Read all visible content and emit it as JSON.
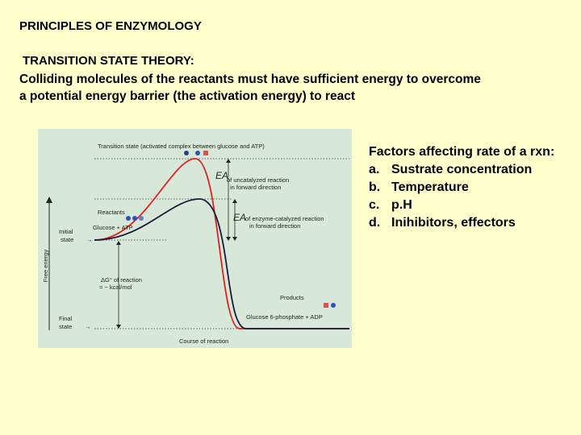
{
  "title": "PRINCIPLES OF ENZYMOLOGY",
  "subtitle": "TRANSITION STATE THEORY:",
  "description_line1": "Colliding molecules of the reactants must have sufficient energy to overcome",
  "description_line2": "a potential energy barrier (the activation energy) to react",
  "factors": {
    "heading": "Factors affecting rate of a rxn:",
    "items": [
      {
        "letter": "a.",
        "text": "Sustrate concentration"
      },
      {
        "letter": "b.",
        "text": "Temperature"
      },
      {
        "letter": "c.",
        "text": "p.H"
      },
      {
        "letter": "d.",
        "text": "Inihibitors, effectors"
      }
    ]
  },
  "figure": {
    "transition_state": "Transition state (activated complex between glucose and ATP)",
    "ea_symbol": "EA",
    "ea_uncat_1": "of uncatalyzed reaction",
    "ea_uncat_2": "in forward direction",
    "ea_cat_1": "of enzyme-catalyzed reaction",
    "ea_cat_2": "in forward direction",
    "reactants": "Reactants",
    "glucose_atp": "Glucose + ATP",
    "y_axis": "Free energy",
    "initial_1": "Initial",
    "initial_2": "state",
    "dg_1": "ΔG° of reaction",
    "dg_2": "= − kcal/mol",
    "products": "Products",
    "g6p_adp": "Glucose 6-phosphate + ADP",
    "final_1": "Final",
    "final_2": "state",
    "x_axis": "Course of reaction",
    "colors": {
      "uncatalyzed": "#e02020",
      "catalyzed": "#1a1a40"
    }
  }
}
